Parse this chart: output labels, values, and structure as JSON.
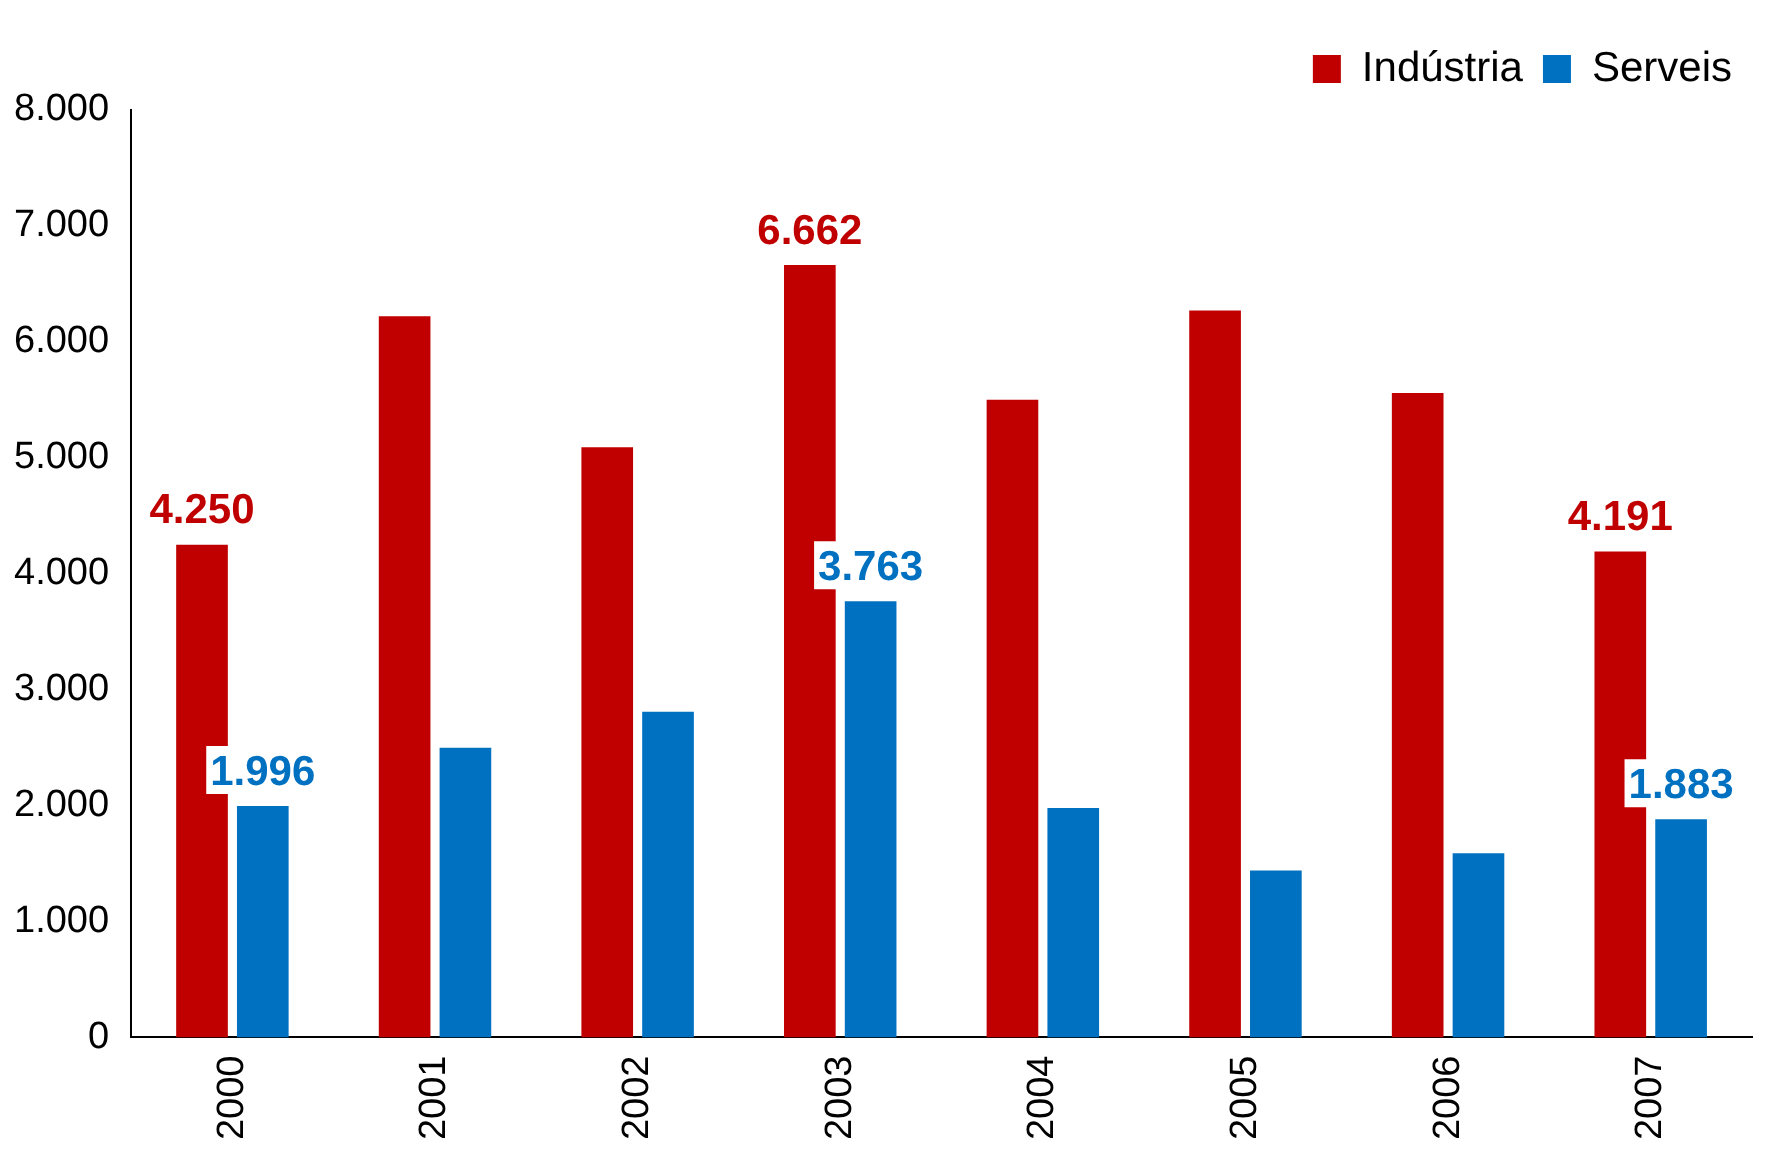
{
  "chart_data": {
    "type": "bar",
    "categories": [
      "2000",
      "2001",
      "2002",
      "2003",
      "2004",
      "2005",
      "2006",
      "2007"
    ],
    "series": [
      {
        "name": "Indústria",
        "color": "#c00000",
        "values": [
          4250,
          6220,
          5090,
          6662,
          5500,
          6270,
          5560,
          4191
        ],
        "value_labels": [
          "4.250",
          null,
          null,
          "6.662",
          null,
          null,
          null,
          "4.191"
        ]
      },
      {
        "name": "Serveis",
        "color": "#0070c0",
        "values": [
          1996,
          2500,
          2810,
          3763,
          1980,
          1440,
          1590,
          1883
        ],
        "value_labels": [
          "1.996",
          null,
          null,
          "3.763",
          null,
          null,
          null,
          "1.883"
        ]
      }
    ],
    "ylim": [
      0,
      8000
    ],
    "yticks": [
      {
        "value": 0,
        "label": "0"
      },
      {
        "value": 1000,
        "label": "1.000"
      },
      {
        "value": 2000,
        "label": "2.000"
      },
      {
        "value": 3000,
        "label": "3.000"
      },
      {
        "value": 4000,
        "label": "4.000"
      },
      {
        "value": 5000,
        "label": "5.000"
      },
      {
        "value": 6000,
        "label": "6.000"
      },
      {
        "value": 7000,
        "label": "7.000"
      },
      {
        "value": 8000,
        "label": "8.000"
      }
    ],
    "legend": "top right"
  }
}
